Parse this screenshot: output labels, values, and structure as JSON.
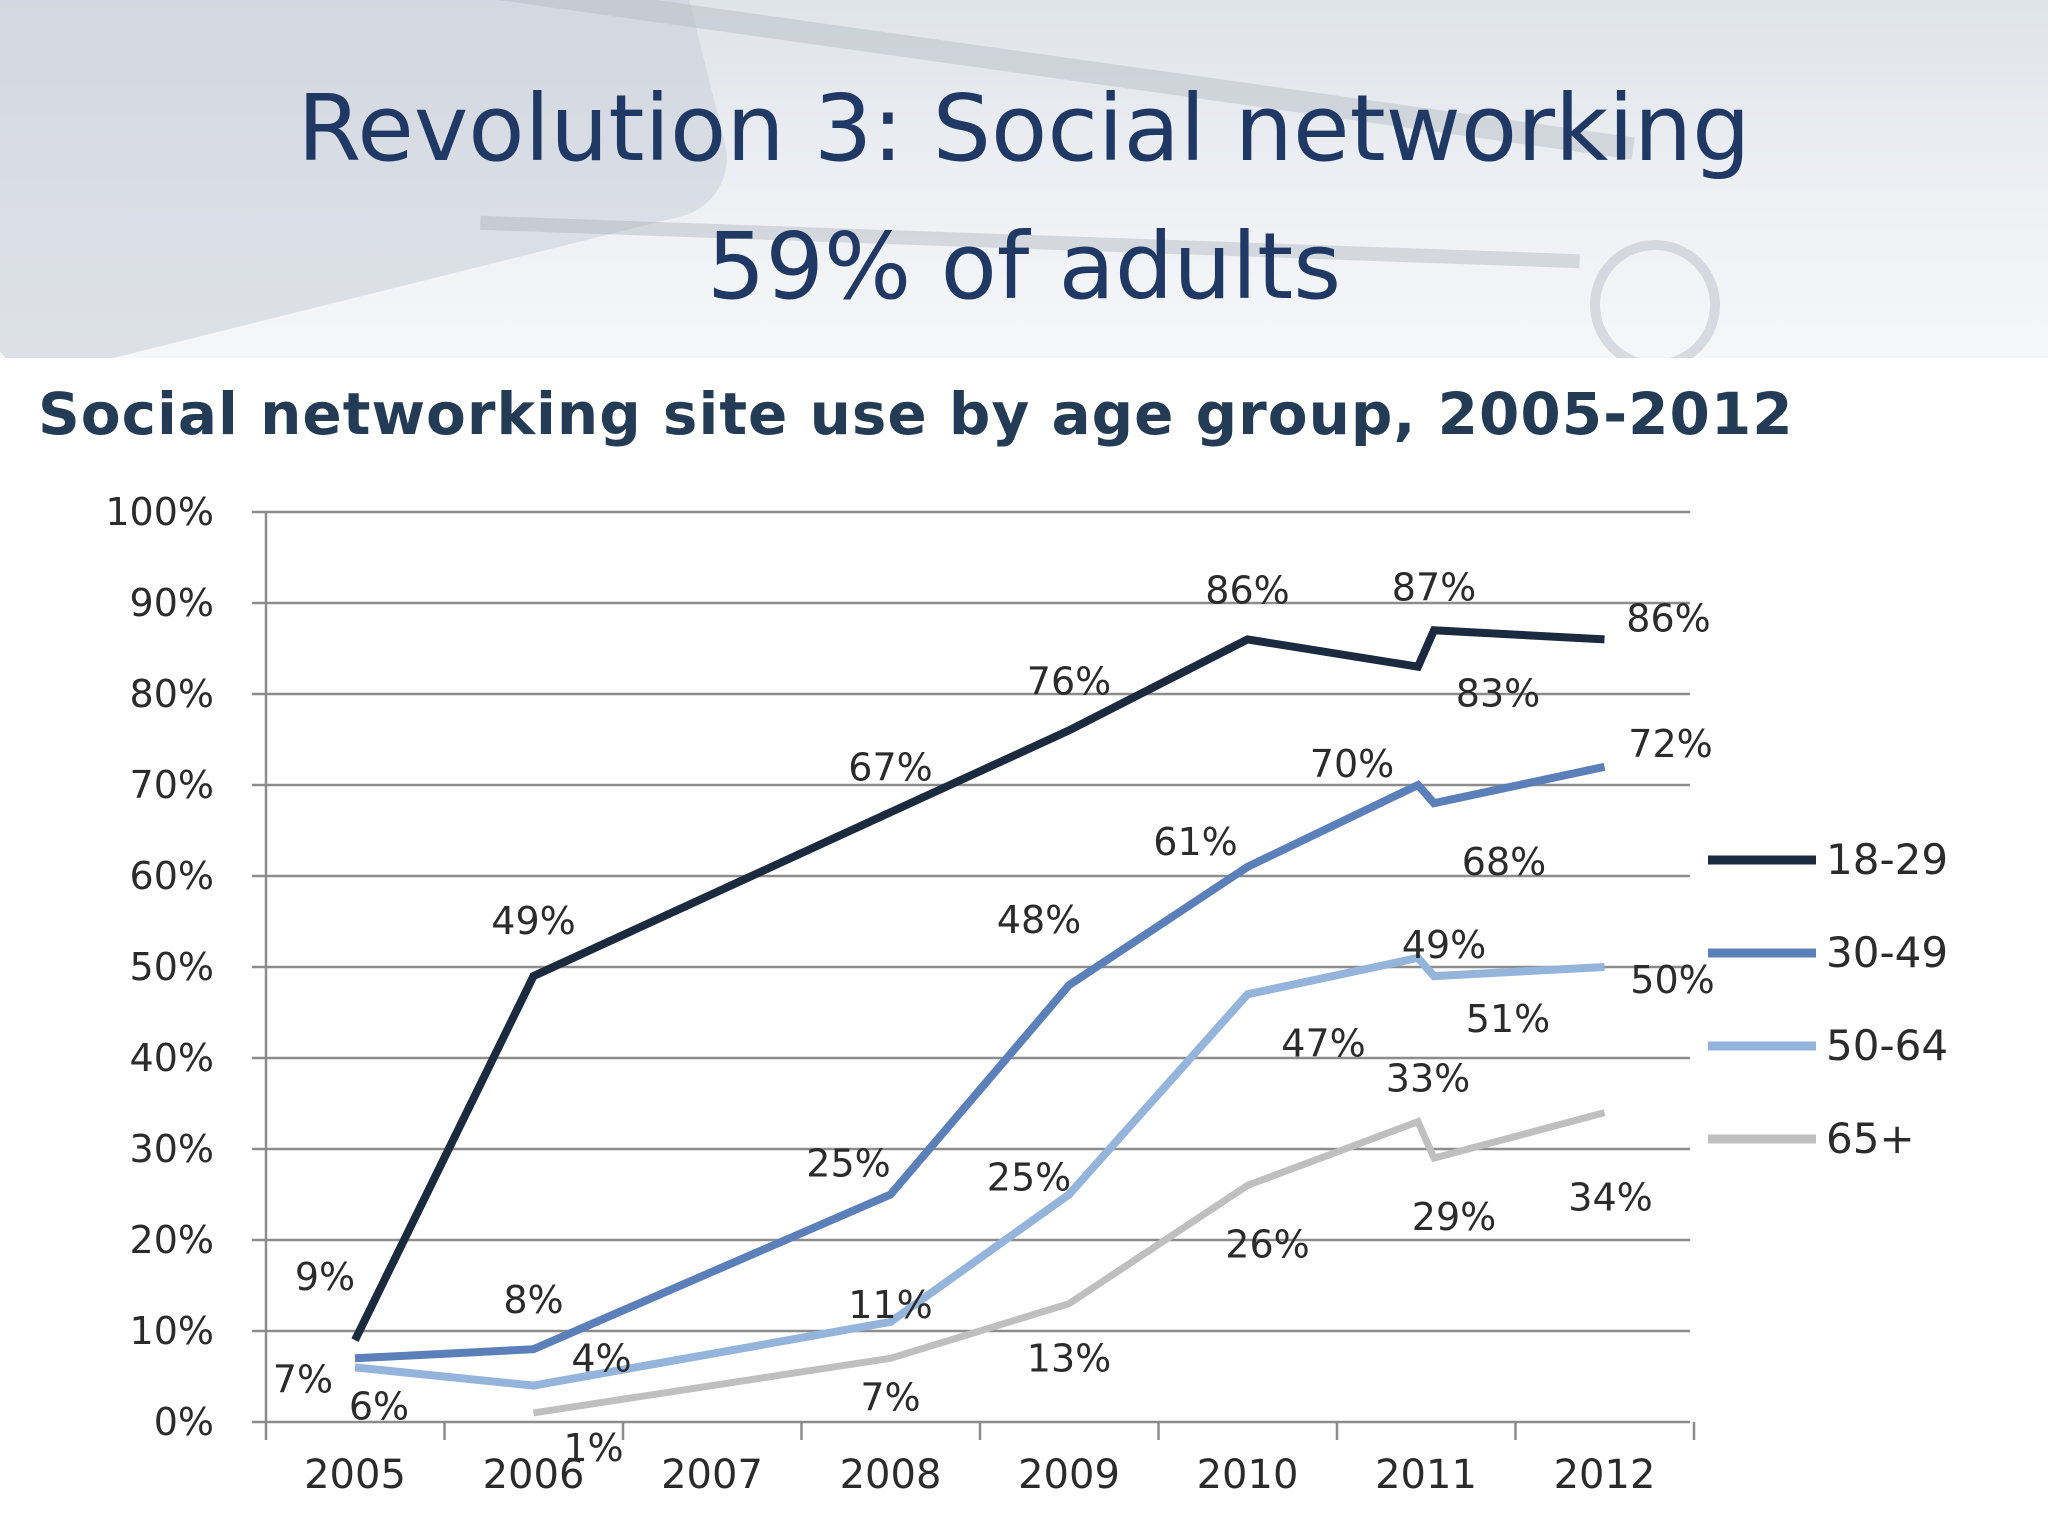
{
  "slide": {
    "title_line1": "Revolution 3: Social networking",
    "title_line2": "59% of adults"
  },
  "colors": {
    "title": "#1f3864",
    "chart_title": "#243b55",
    "gridline": "#8c8c8c",
    "series_18_29": "#1b2a3e",
    "series_30_49": "#5b80b9",
    "series_50_64": "#95b4dc",
    "series_65_plus": "#bfbfbf"
  },
  "chart_data": {
    "type": "line",
    "title": "Social networking site use by age group, 2005-2012",
    "xlabel": "",
    "ylabel": "",
    "x_ticks": [
      "2005",
      "2006",
      "2007",
      "2008",
      "2009",
      "2010",
      "2011",
      "2012"
    ],
    "y_ticks": [
      "0%",
      "10%",
      "20%",
      "30%",
      "40%",
      "50%",
      "60%",
      "70%",
      "80%",
      "90%",
      "100%"
    ],
    "ylim": [
      0,
      100
    ],
    "grid": true,
    "legend_position": "right",
    "series": [
      {
        "name": "18-29",
        "points": [
          [
            2005,
            9
          ],
          [
            2006,
            49
          ],
          [
            2008,
            67
          ],
          [
            2009,
            76
          ],
          [
            2010,
            86
          ],
          [
            2011,
            83
          ],
          [
            2011,
            87
          ],
          [
            2012,
            86
          ]
        ],
        "labels": [
          "9%",
          "49%",
          "67%",
          "76%",
          "86%",
          "83%",
          "87%",
          "86%"
        ]
      },
      {
        "name": "30-49",
        "points": [
          [
            2005,
            7
          ],
          [
            2006,
            8
          ],
          [
            2008,
            25
          ],
          [
            2009,
            48
          ],
          [
            2010,
            61
          ],
          [
            2011,
            70
          ],
          [
            2011,
            68
          ],
          [
            2012,
            72
          ]
        ],
        "labels": [
          "7%",
          "8%",
          "25%",
          "48%",
          "61%",
          "70%",
          "68%",
          "72%"
        ]
      },
      {
        "name": "50-64",
        "points": [
          [
            2005,
            6
          ],
          [
            2006,
            4
          ],
          [
            2008,
            11
          ],
          [
            2009,
            25
          ],
          [
            2010,
            47
          ],
          [
            2011,
            51
          ],
          [
            2011,
            49
          ],
          [
            2012,
            50
          ]
        ],
        "labels": [
          "6%",
          "4%",
          "11%",
          "25%",
          "47%",
          "51%",
          "49%",
          "50%"
        ]
      },
      {
        "name": "65+",
        "points": [
          [
            2006,
            1
          ],
          [
            2008,
            7
          ],
          [
            2009,
            13
          ],
          [
            2010,
            26
          ],
          [
            2011,
            33
          ],
          [
            2011,
            29
          ],
          [
            2012,
            34
          ]
        ],
        "labels": [
          "1%",
          "7%",
          "13%",
          "26%",
          "33%",
          "29%",
          "34%"
        ]
      }
    ]
  }
}
